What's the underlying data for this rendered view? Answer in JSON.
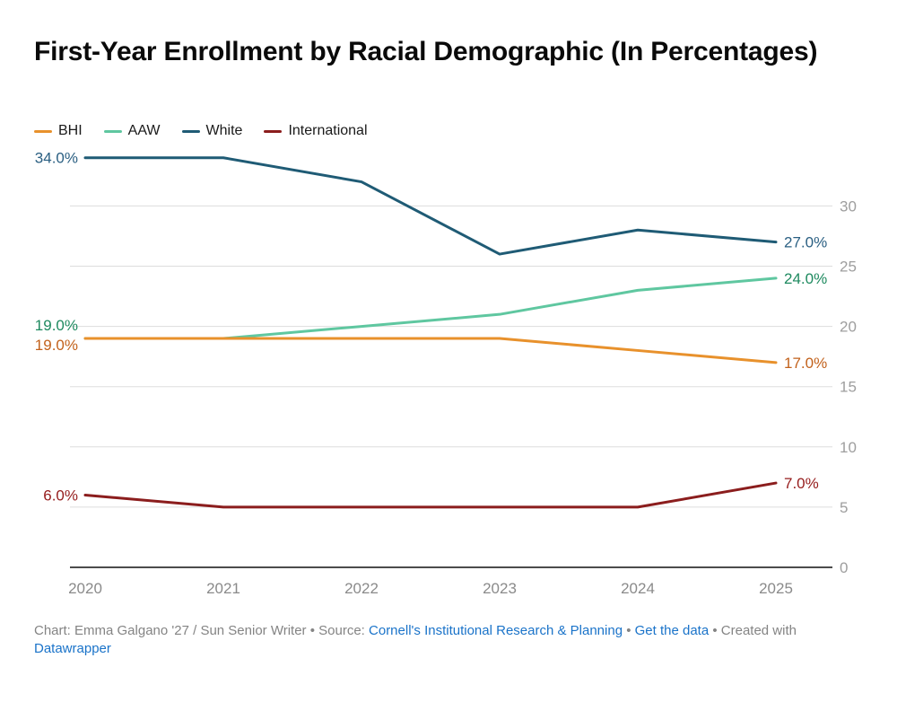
{
  "title": "First-Year Enrollment by Racial Demographic (In Percentages)",
  "chart_data": {
    "type": "line",
    "x": [
      "2020",
      "2021",
      "2022",
      "2023",
      "2024",
      "2025"
    ],
    "series": [
      {
        "name": "BHI",
        "color": "#E8912C",
        "label_color": "#C2611B",
        "values": [
          19,
          19,
          19,
          19,
          18,
          17
        ],
        "start_label": "19.0%",
        "end_label": "17.0%",
        "start_dy": 7
      },
      {
        "name": "AAW",
        "color": "#5FC7A0",
        "label_color": "#1E8A5F",
        "values": [
          19,
          19,
          20,
          21,
          23,
          24
        ],
        "start_label": "19.0%",
        "end_label": "24.0%",
        "start_dy": -15
      },
      {
        "name": "White",
        "color": "#1F5B75",
        "label_color": "#2A5F82",
        "values": [
          34,
          34,
          32,
          26,
          28,
          27
        ],
        "start_label": "34.0%",
        "end_label": "27.0%",
        "start_dy": 0
      },
      {
        "name": "International",
        "color": "#8B1D1D",
        "label_color": "#951B1B",
        "values": [
          6,
          5,
          5,
          5,
          5,
          7
        ],
        "start_label": "6.0%",
        "end_label": "7.0%",
        "start_dy": 0
      }
    ],
    "y_ticks": [
      0,
      5,
      10,
      15,
      20,
      25,
      30
    ],
    "ylim": [
      0,
      35
    ],
    "grid": true,
    "legend_position": "top",
    "y_axis_side": "right",
    "colors": {
      "gridline": "#dddddd",
      "baseline": "#111111",
      "y_tick_label": "#9e9e9e",
      "x_tick_label": "#8a8a8a"
    }
  },
  "footer": {
    "credit_prefix": "Chart: Emma Galgano '27 / Sun Senior Writer • Source: ",
    "source_link": "Cornell's Institutional Research & Planning",
    "sep1": " • ",
    "get_data_link": "Get the data",
    "sep2": " • Created with ",
    "datawrapper_link": "Datawrapper"
  }
}
